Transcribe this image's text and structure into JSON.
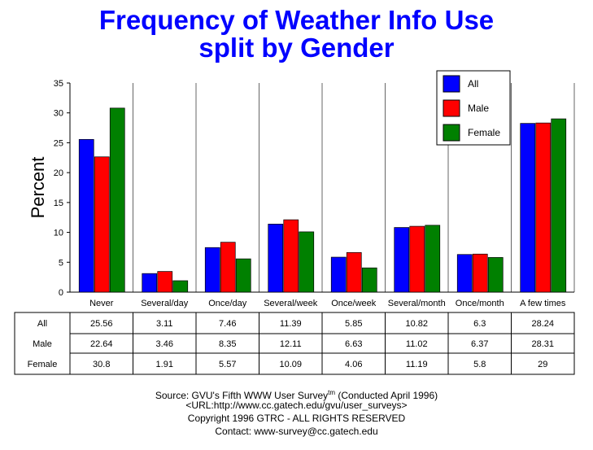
{
  "chart_data": {
    "type": "bar",
    "title": "Frequency of Weather Info Use",
    "subtitle": "split by Gender",
    "xlabel": "",
    "ylabel": "Percent",
    "ylim": [
      0,
      35
    ],
    "yticks": [
      0,
      5,
      10,
      15,
      20,
      25,
      30,
      35
    ],
    "grid": "vertical separators",
    "legend": "top-right",
    "categories": [
      "Never",
      "Several/day",
      "Once/day",
      "Several/week",
      "Once/week",
      "Several/month",
      "Once/month",
      "A few times"
    ],
    "series": [
      {
        "name": "All",
        "color": "#0000ff",
        "values": [
          25.56,
          3.11,
          7.46,
          11.39,
          5.85,
          10.82,
          6.3,
          28.24
        ],
        "labels": [
          "25.56",
          "3.11",
          "7.46",
          "11.39",
          "5.85",
          "10.82",
          "6.3",
          "28.24"
        ]
      },
      {
        "name": "Male",
        "color": "#ff0000",
        "values": [
          22.64,
          3.46,
          8.35,
          12.11,
          6.63,
          11.02,
          6.37,
          28.31
        ],
        "labels": [
          "22.64",
          "3.46",
          "8.35",
          "12.11",
          "6.63",
          "11.02",
          "6.37",
          "28.31"
        ]
      },
      {
        "name": "Female",
        "color": "#008000",
        "values": [
          30.8,
          1.91,
          5.57,
          10.09,
          4.06,
          11.19,
          5.8,
          29
        ],
        "labels": [
          "30.8",
          "1.91",
          "5.57",
          "10.09",
          "4.06",
          "11.19",
          "5.8",
          "29"
        ]
      }
    ]
  },
  "footer": {
    "source": "Source: GVU's Fifth WWW User Survey",
    "tm": "tm",
    "conducted": " (Conducted April 1996)",
    "url": "<URL:http://www.cc.gatech.edu/gvu/user_surveys>",
    "copyright": "Copyright 1996 GTRC -  ALL RIGHTS RESERVED",
    "contact": "Contact: www-survey@cc.gatech.edu"
  }
}
